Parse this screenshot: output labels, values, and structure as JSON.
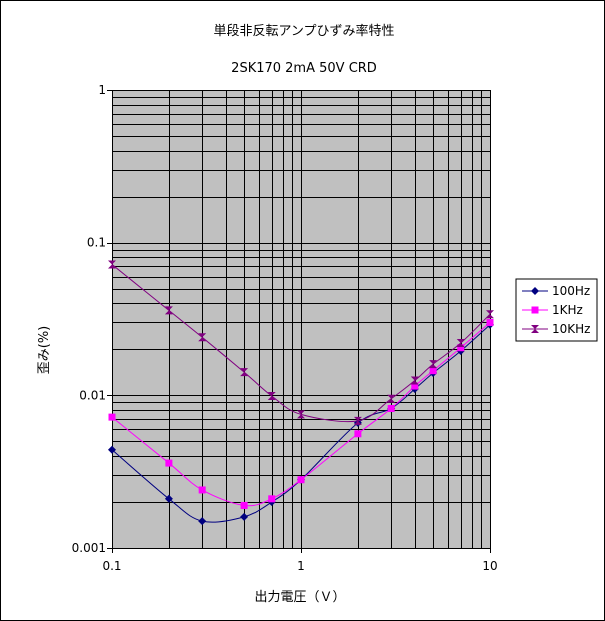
{
  "chart_data": {
    "type": "line",
    "title": "単段非反転アンプひずみ率特性",
    "subtitle": "2SK170 2mA 50V CRD",
    "xlabel": "出力電圧（Ｖ）",
    "ylabel": "歪み(%)",
    "xscale": "log",
    "yscale": "log",
    "xlim": [
      0.1,
      10
    ],
    "ylim": [
      0.001,
      1
    ],
    "x_ticks": [
      "0.1",
      "1",
      "10"
    ],
    "y_ticks": [
      "1",
      "0.1",
      "0.01",
      "0.001"
    ],
    "grid": true,
    "legend_position": "right",
    "plot_background": "#c0c0c0",
    "series": [
      {
        "name": "100Hz",
        "color": "#000080",
        "marker": "diamond",
        "x": [
          0.1,
          0.2,
          0.3,
          0.5,
          0.7,
          1,
          2,
          3,
          4,
          5,
          7,
          10
        ],
        "y": [
          0.0044,
          0.0021,
          0.0015,
          0.0016,
          0.002,
          0.0028,
          0.0066,
          0.0082,
          0.011,
          0.014,
          0.0195,
          0.029
        ]
      },
      {
        "name": "1KHz",
        "color": "#ff00ff",
        "marker": "square",
        "x": [
          0.1,
          0.2,
          0.3,
          0.5,
          0.7,
          1,
          2,
          3,
          4,
          5,
          7,
          10
        ],
        "y": [
          0.0072,
          0.0036,
          0.0024,
          0.0019,
          0.0021,
          0.0028,
          0.0056,
          0.0082,
          0.0115,
          0.0145,
          0.0205,
          0.03
        ]
      },
      {
        "name": "10KHz",
        "color": "#800080",
        "marker": "hourglass",
        "x": [
          0.1,
          0.2,
          0.3,
          0.5,
          0.7,
          1,
          2,
          3,
          4,
          5,
          7,
          10
        ],
        "y": [
          0.072,
          0.036,
          0.024,
          0.0142,
          0.0099,
          0.0075,
          0.0068,
          0.0095,
          0.0125,
          0.016,
          0.022,
          0.034
        ]
      }
    ]
  }
}
